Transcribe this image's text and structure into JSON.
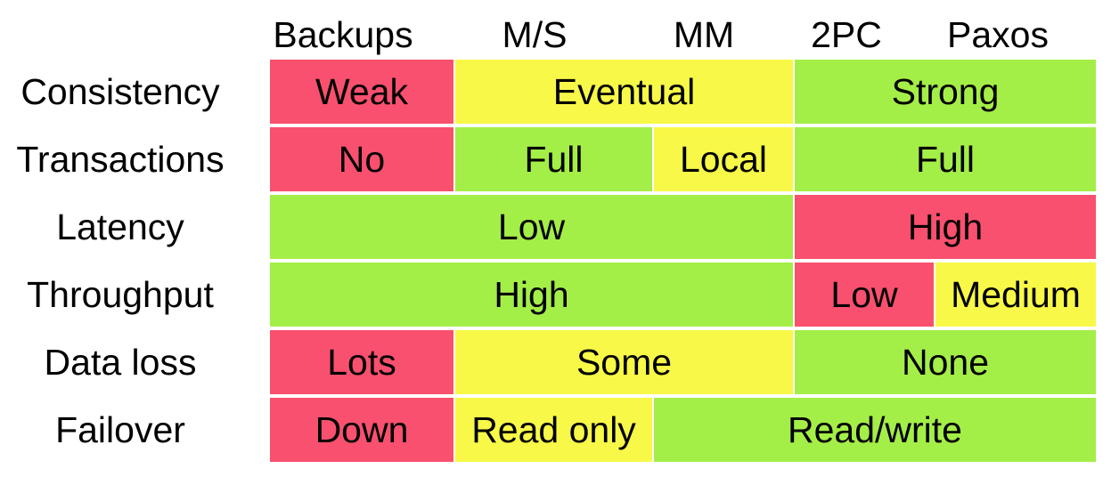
{
  "columns": [
    "Backups",
    "M/S",
    "MM",
    "2PC",
    "Paxos"
  ],
  "rows": [
    {
      "label": "Consistency",
      "cells": [
        {
          "text": "Weak",
          "color": "#f8506e"
        },
        {
          "text": "Eventual",
          "color": "#f8f848"
        },
        {
          "text": "Strong",
          "color": "#a4ee48"
        }
      ]
    },
    {
      "label": "Transactions",
      "cells": [
        {
          "text": "No",
          "color": "#f8506e"
        },
        {
          "text": "Full",
          "color": "#a4ee48"
        },
        {
          "text": "Local",
          "color": "#f8f848"
        },
        {
          "text": "Full",
          "color": "#a4ee48"
        }
      ]
    },
    {
      "label": "Latency",
      "cells": [
        {
          "text": "Low",
          "color": "#a4ee48"
        },
        {
          "text": "High",
          "color": "#f8506e"
        }
      ]
    },
    {
      "label": "Throughput",
      "cells": [
        {
          "text": "High",
          "color": "#a4ee48"
        },
        {
          "text": "Low",
          "color": "#f8506e"
        },
        {
          "text": "Medium",
          "color": "#f8f848"
        }
      ]
    },
    {
      "label": "Data loss",
      "cells": [
        {
          "text": "Lots",
          "color": "#f8506e"
        },
        {
          "text": "Some",
          "color": "#f8f848"
        },
        {
          "text": "None",
          "color": "#a4ee48"
        }
      ]
    },
    {
      "label": "Failover",
      "cells": [
        {
          "text": "Down",
          "color": "#f8506e"
        },
        {
          "text": "Read only",
          "color": "#f8f848"
        },
        {
          "text": "Read/write",
          "color": "#a4ee48"
        }
      ]
    }
  ],
  "colors": {
    "red": "#f8506e",
    "yellow": "#f8f848",
    "green": "#a4ee48"
  }
}
